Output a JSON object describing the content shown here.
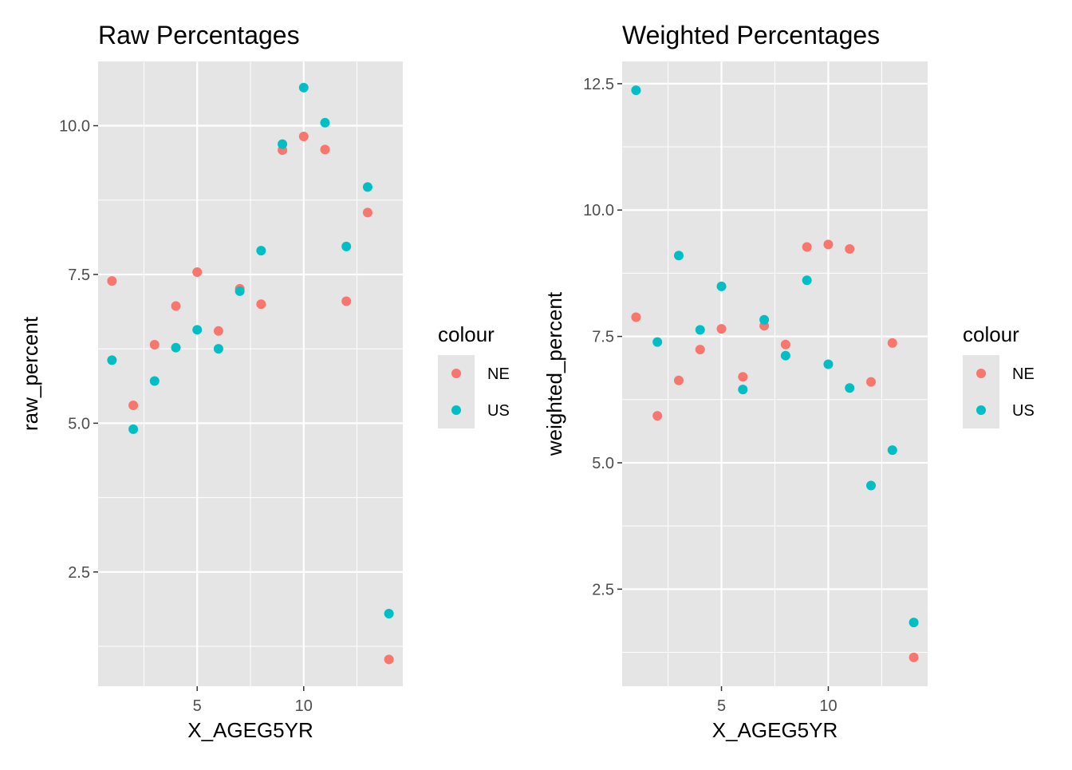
{
  "colors": {
    "NE": "#F8766D",
    "US": "#00BFC4",
    "panel_bg": "#E5E5E5",
    "grid": "#FFFFFF",
    "tick_text": "#4D4D4D"
  },
  "chart_data": [
    {
      "type": "scatter",
      "title": "Raw Percentages",
      "xlabel": "X_AGEG5YR",
      "ylabel": "raw_percent",
      "xlim": [
        0.35,
        14.65
      ],
      "ylim": [
        0.58,
        11.08
      ],
      "x_ticks": [
        5,
        10
      ],
      "x_tick_labels": [
        "5",
        "10"
      ],
      "y_ticks": [
        2.5,
        5.0,
        7.5,
        10.0
      ],
      "y_tick_labels": [
        "2.5",
        "5.0",
        "7.5",
        "10.0"
      ],
      "grid": true,
      "legend": {
        "title": "colour",
        "position": "right",
        "entries": [
          "NE",
          "US"
        ]
      },
      "series": [
        {
          "name": "NE",
          "color": "#F8766D",
          "x": [
            1,
            2,
            3,
            4,
            5,
            6,
            7,
            8,
            9,
            10,
            11,
            12,
            13,
            14
          ],
          "y": [
            7.39,
            5.3,
            6.32,
            6.97,
            7.54,
            6.55,
            7.26,
            7.0,
            9.59,
            9.82,
            9.6,
            7.05,
            8.54,
            1.03
          ]
        },
        {
          "name": "US",
          "color": "#00BFC4",
          "x": [
            1,
            2,
            3,
            4,
            5,
            6,
            7,
            8,
            9,
            10,
            11,
            12,
            13,
            14
          ],
          "y": [
            6.06,
            4.9,
            5.71,
            6.27,
            6.57,
            6.25,
            7.22,
            7.9,
            9.69,
            10.64,
            10.05,
            7.97,
            8.97,
            1.8
          ]
        }
      ]
    },
    {
      "type": "scatter",
      "title": "Weighted Percentages",
      "xlabel": "X_AGEG5YR",
      "ylabel": "weighted_percent",
      "xlim": [
        0.35,
        14.65
      ],
      "ylim": [
        0.58,
        12.94
      ],
      "x_ticks": [
        5,
        10
      ],
      "x_tick_labels": [
        "5",
        "10"
      ],
      "y_ticks": [
        2.5,
        5.0,
        7.5,
        10.0,
        12.5
      ],
      "y_tick_labels": [
        "2.5",
        "5.0",
        "7.5",
        "10.0",
        "12.5"
      ],
      "grid": true,
      "legend": {
        "title": "colour",
        "position": "right",
        "entries": [
          "NE",
          "US"
        ]
      },
      "series": [
        {
          "name": "NE",
          "color": "#F8766D",
          "x": [
            1,
            2,
            3,
            4,
            5,
            6,
            7,
            8,
            9,
            10,
            11,
            12,
            13,
            14
          ],
          "y": [
            7.88,
            5.93,
            6.63,
            7.24,
            7.65,
            6.7,
            7.71,
            7.34,
            9.27,
            9.32,
            9.23,
            6.6,
            7.37,
            1.15
          ]
        },
        {
          "name": "US",
          "color": "#00BFC4",
          "x": [
            1,
            2,
            3,
            4,
            5,
            6,
            7,
            8,
            9,
            10,
            11,
            12,
            13,
            14
          ],
          "y": [
            12.37,
            7.39,
            9.1,
            7.63,
            8.49,
            6.45,
            7.83,
            7.12,
            8.61,
            6.95,
            6.48,
            4.55,
            5.25,
            1.84
          ]
        }
      ]
    }
  ]
}
